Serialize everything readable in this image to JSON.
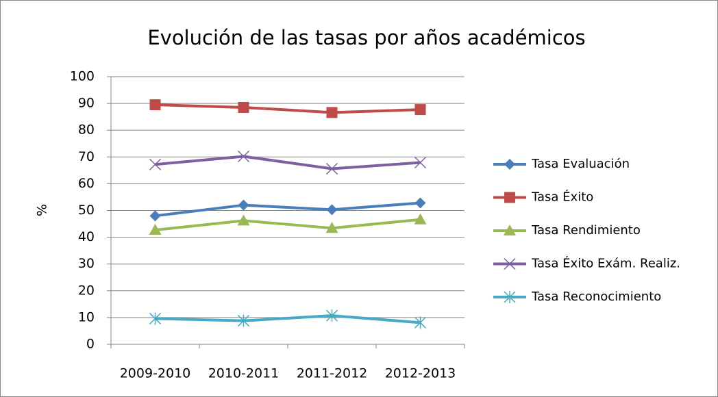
{
  "chart_data": {
    "type": "line",
    "title": "Evolución de las tasas por años académicos",
    "y_label": "%",
    "categories": [
      "2009-2010",
      "2010-2011",
      "2011-2012",
      "2012-2013"
    ],
    "series": [
      {
        "name": "Tasa Evaluación",
        "color": "#4a7ebb",
        "marker": "diamond",
        "values": [
          48,
          52,
          50.3,
          52.8
        ]
      },
      {
        "name": "Tasa Éxito",
        "color": "#be4b48",
        "marker": "square",
        "values": [
          89.5,
          88.5,
          86.6,
          87.7
        ]
      },
      {
        "name": "Tasa Rendimiento",
        "color": "#98b954",
        "marker": "triangle",
        "values": [
          42.7,
          46.2,
          43.4,
          46.6
        ]
      },
      {
        "name": "Tasa Éxito Exám. Realiz.",
        "color": "#7d60a0",
        "marker": "x",
        "values": [
          67.2,
          70.2,
          65.6,
          67.9
        ]
      },
      {
        "name": "Tasa Reconocimiento",
        "color": "#46aac5",
        "marker": "asterisk",
        "values": [
          9.6,
          8.8,
          10.7,
          8.1
        ]
      }
    ],
    "ylim": [
      0,
      100
    ],
    "yticks": [
      0,
      10,
      20,
      30,
      40,
      50,
      60,
      70,
      80,
      90,
      100
    ],
    "grid": true,
    "legend": "right"
  }
}
